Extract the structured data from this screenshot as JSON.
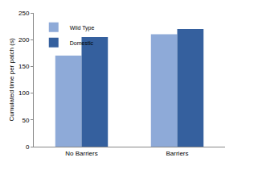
{
  "chart_data": {
    "type": "bar",
    "categories": [
      "No Barriers",
      "Barriers"
    ],
    "series": [
      {
        "name": "Wild Type",
        "color": "#8eaad8",
        "values": [
          170,
          210
        ]
      },
      {
        "name": "Domestic",
        "color": "#35609e",
        "values": [
          205,
          220
        ]
      }
    ],
    "y_label": "Cumulated time per patch (s)",
    "ylim": [
      0,
      250
    ],
    "yticks": [
      0,
      50,
      100,
      150,
      200,
      250
    ],
    "grid": false,
    "legend": "top left"
  }
}
